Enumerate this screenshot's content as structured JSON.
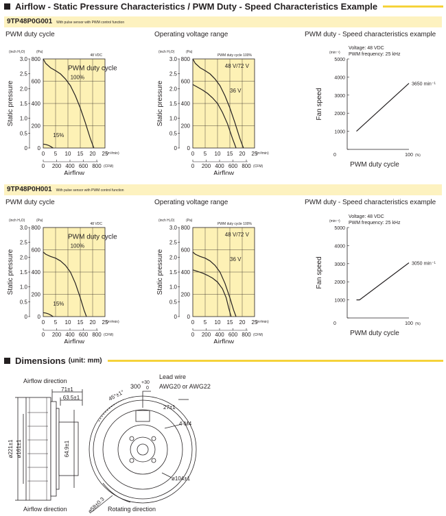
{
  "header": {
    "title": "Airflow - Static Pressure Characteristics / PWM Duty - Speed Characteristics Example",
    "accent_color": "#f5d23a",
    "band_color": "#fdf2c0",
    "chart_bg": "#fdf1b5"
  },
  "models": [
    {
      "name": "9TP48P0G001",
      "subtitle": "With pulse sensor with PWM control function",
      "panel_titles": [
        "PWM duty cycle",
        "Operating voltage range",
        "PWM duty - Speed characteristics example"
      ],
      "unit_inch": "(inch H₂O)",
      "unit_pa": "(Pa)",
      "pwm_vdc": "48 VDC",
      "voltage_note": "PWM duty cycle 100%",
      "curve_labels": {
        "pwm_title": "PWM duty cycle",
        "p100": "100%",
        "p15": "15%",
        "v1": "48 V/72 V",
        "v2": "36 V"
      },
      "speed_note": {
        "voltage": "Voltage: 48 VDC",
        "freq": "PWM frequency: 25 kHz",
        "end_label": "3650 min⁻¹"
      }
    },
    {
      "name": "9TP48P0H001",
      "subtitle": "With pulse sensor with PWM control function",
      "panel_titles": [
        "PWM duty cycle",
        "Operating voltage range",
        "PWM duty - Speed characteristics example"
      ],
      "unit_inch": "(inch H₂O)",
      "unit_pa": "(Pa)",
      "pwm_vdc": "48 VDC",
      "voltage_note": "PWM duty cycle 100%",
      "curve_labels": {
        "pwm_title": "PWM duty cycle",
        "p100": "100%",
        "p15": "15%",
        "v1": "48 V/72 V",
        "v2": "36 V"
      },
      "speed_note": {
        "voltage": "Voltage: 48 VDC",
        "freq": "PWM frequency: 25 kHz",
        "end_label": "3050 min⁻¹"
      }
    }
  ],
  "axis": {
    "ylabel": "Static pressure",
    "xlabel": "Airflow",
    "m3_unit": "(m³/min)",
    "cfm_unit": "(CFM)",
    "speed_ylabel": "Fan speed",
    "speed_xlabel": "PWM duty cycle",
    "speed_unit": "(min⁻¹)",
    "pct_unit": "(%)"
  },
  "chart_data": [
    {
      "type": "line",
      "model": "9TP48P0G001",
      "chart": "PWM duty cycle",
      "xlabel": "Airflow",
      "ylabel": "Static pressure",
      "x_ticks": [
        "0",
        "5",
        "10",
        "15",
        "20",
        "25"
      ],
      "cfm_ticks": [
        "0",
        "200",
        "400",
        "600",
        "800"
      ],
      "y_ticks_pa": [
        "0",
        "200",
        "400",
        "600",
        "800"
      ],
      "y_ticks_inch": [
        "0",
        "0.5",
        "1.0",
        "1.5",
        "2.0",
        "2.5",
        "3.0"
      ],
      "xlim": [
        0,
        25
      ],
      "ylim": [
        0,
        800
      ],
      "series": [
        {
          "name": "100%",
          "x": [
            0,
            1,
            3,
            5,
            7,
            9,
            11,
            13,
            15,
            17,
            19,
            20.5
          ],
          "y": [
            800,
            760,
            720,
            695,
            665,
            620,
            560,
            470,
            360,
            230,
            90,
            0
          ]
        },
        {
          "name": "15%",
          "x": [
            0,
            1,
            2,
            3,
            4
          ],
          "y": [
            35,
            32,
            25,
            14,
            0
          ]
        }
      ]
    },
    {
      "type": "line",
      "model": "9TP48P0G001",
      "chart": "Operating voltage range",
      "xlabel": "Airflow",
      "ylabel": "Static pressure",
      "x_ticks": [
        "0",
        "5",
        "10",
        "15",
        "20",
        "25"
      ],
      "cfm_ticks": [
        "0",
        "200",
        "400",
        "600",
        "800"
      ],
      "y_ticks_pa": [
        "0",
        "200",
        "400",
        "600",
        "800"
      ],
      "y_ticks_inch": [
        "0",
        "0.5",
        "1.0",
        "1.5",
        "2.0",
        "2.5",
        "3.0"
      ],
      "xlim": [
        0,
        25
      ],
      "ylim": [
        0,
        800
      ],
      "series": [
        {
          "name": "48 V/72 V",
          "x": [
            0,
            1,
            3,
            5,
            7,
            9,
            11,
            13,
            15,
            17,
            19,
            20.5
          ],
          "y": [
            800,
            760,
            720,
            695,
            665,
            620,
            560,
            470,
            360,
            230,
            90,
            0
          ]
        },
        {
          "name": "36 V",
          "x": [
            0,
            2,
            4,
            6,
            8,
            10,
            12,
            14,
            16,
            17.5
          ],
          "y": [
            570,
            545,
            520,
            490,
            450,
            400,
            320,
            220,
            90,
            0
          ]
        }
      ]
    },
    {
      "type": "line",
      "model": "9TP48P0G001",
      "chart": "PWM duty - Speed characteristics example",
      "xlabel": "PWM duty cycle",
      "ylabel": "Fan speed",
      "y_ticks": [
        "0",
        "1000",
        "2000",
        "3000",
        "4000",
        "5000"
      ],
      "x_ticks": [
        "0",
        "100"
      ],
      "xlim": [
        0,
        100
      ],
      "ylim": [
        0,
        5000
      ],
      "series": [
        {
          "name": "3650 min⁻¹",
          "x": [
            15,
            100
          ],
          "y": [
            1000,
            3650
          ]
        }
      ]
    },
    {
      "type": "line",
      "model": "9TP48P0H001",
      "chart": "PWM duty cycle",
      "xlabel": "Airflow",
      "ylabel": "Static pressure",
      "x_ticks": [
        "0",
        "5",
        "10",
        "15",
        "20",
        "25"
      ],
      "cfm_ticks": [
        "0",
        "200",
        "400",
        "600",
        "800"
      ],
      "y_ticks_pa": [
        "0",
        "200",
        "400",
        "600",
        "800"
      ],
      "y_ticks_inch": [
        "0",
        "0.5",
        "1.0",
        "1.5",
        "2.0",
        "2.5",
        "3.0"
      ],
      "xlim": [
        0,
        25
      ],
      "ylim": [
        0,
        800
      ],
      "series": [
        {
          "name": "100%",
          "x": [
            0,
            1,
            3,
            5,
            7,
            9,
            11,
            13,
            15,
            16.5,
            17.5
          ],
          "y": [
            580,
            560,
            540,
            525,
            500,
            460,
            400,
            300,
            170,
            60,
            0
          ]
        },
        {
          "name": "15%",
          "x": [
            0,
            1,
            2,
            3,
            4
          ],
          "y": [
            35,
            32,
            25,
            14,
            0
          ]
        }
      ]
    },
    {
      "type": "line",
      "model": "9TP48P0H001",
      "chart": "Operating voltage range",
      "xlabel": "Airflow",
      "ylabel": "Static pressure",
      "x_ticks": [
        "0",
        "5",
        "10",
        "15",
        "20",
        "25"
      ],
      "cfm_ticks": [
        "0",
        "200",
        "400",
        "600",
        "800"
      ],
      "y_ticks_pa": [
        "0",
        "200",
        "400",
        "600",
        "800"
      ],
      "y_ticks_inch": [
        "0",
        "0.5",
        "1.0",
        "1.5",
        "2.0",
        "2.5",
        "3.0"
      ],
      "xlim": [
        0,
        25
      ],
      "ylim": [
        0,
        800
      ],
      "series": [
        {
          "name": "48 V/72 V",
          "x": [
            0,
            1,
            3,
            5,
            7,
            9,
            11,
            13,
            15,
            16.5,
            17.5
          ],
          "y": [
            580,
            560,
            540,
            525,
            500,
            460,
            400,
            300,
            170,
            60,
            0
          ]
        },
        {
          "name": "36 V",
          "x": [
            0,
            2,
            4,
            6,
            8,
            10,
            12,
            13.5,
            14.5,
            15.5
          ],
          "y": [
            420,
            405,
            390,
            370,
            345,
            310,
            250,
            170,
            80,
            0
          ]
        }
      ]
    },
    {
      "type": "line",
      "model": "9TP48P0H001",
      "chart": "PWM duty - Speed characteristics example",
      "xlabel": "PWM duty cycle",
      "ylabel": "Fan speed",
      "y_ticks": [
        "0",
        "1000",
        "2000",
        "3000",
        "4000",
        "5000"
      ],
      "x_ticks": [
        "0",
        "100"
      ],
      "xlim": [
        0,
        100
      ],
      "ylim": [
        0,
        5000
      ],
      "series": [
        {
          "name": "3050 min⁻¹",
          "x": [
            15,
            20,
            100
          ],
          "y": [
            1000,
            1000,
            3050
          ]
        }
      ]
    }
  ],
  "dimensions": {
    "title": "Dimensions",
    "unit": "(unit: mm)",
    "airflow_direction": "Airflow direction",
    "rotating_direction": "Rotating direction",
    "lead_wire": "Lead wire",
    "awg": "AWG20 or AWG22",
    "labels": {
      "d71": "71±1",
      "d63": "63.5±1",
      "d64": "64.9±1",
      "d221": "ø221±1",
      "d161": "ø161±1",
      "angle": "45°±1°",
      "wire_len": "300",
      "wire_tol_plus": "+30",
      "wire_tol_minus": "0",
      "d27": "27±1",
      "m4": "4-M4",
      "d104": "ø104±1",
      "d58": "ø58±0.3"
    }
  }
}
